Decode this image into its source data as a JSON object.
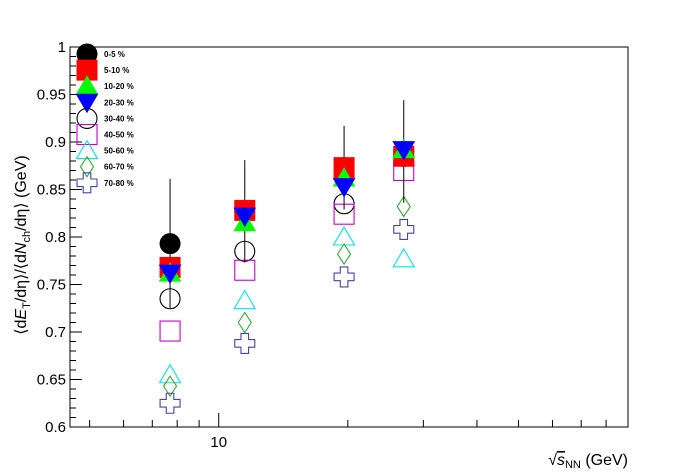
{
  "chart_data": {
    "type": "scatter",
    "title": "",
    "xlabel": {
      "prefix": "√",
      "symbol": "s",
      "subscript": "NN",
      "suffix": " (GeV)"
    },
    "ylabel": {
      "parts": [
        "⟨d",
        "E",
        "T",
        "/dη⟩/⟨d",
        "N",
        "ch",
        "/dη⟩ (GeV)"
      ]
    },
    "xscale": "log",
    "xlim": [
      4.5,
      90
    ],
    "ylim": [
      0.6,
      1.0
    ],
    "y_ticks": [
      "0.6",
      "0.65",
      "0.7",
      "0.75",
      "0.8",
      "0.85",
      "0.9",
      "0.95",
      "1"
    ],
    "x_tick_labels": [
      {
        "value": 10,
        "label": "10"
      }
    ],
    "grid": false,
    "legend_position": "top-left",
    "series": [
      {
        "name": "0-5 %",
        "marker": "circle",
        "filled": true,
        "color": "#000000",
        "points": [
          [
            7.7,
            0.793,
            0.068
          ],
          [
            11.5,
            0.827,
            0.054
          ],
          [
            19.6,
            0.873,
            0.044
          ],
          [
            27,
            0.89,
            0.054
          ]
        ]
      },
      {
        "name": "5-10 %",
        "marker": "square",
        "filled": true,
        "color": "#ff0000",
        "points": [
          [
            7.7,
            0.768
          ],
          [
            11.5,
            0.828
          ],
          [
            19.6,
            0.873
          ],
          [
            27,
            0.885
          ]
        ]
      },
      {
        "name": "10-20 %",
        "marker": "triangle-up",
        "filled": true,
        "color": "#00ff00",
        "points": [
          [
            7.7,
            0.762
          ],
          [
            11.5,
            0.815
          ],
          [
            19.6,
            0.862
          ],
          [
            27,
            0.892
          ]
        ]
      },
      {
        "name": "20-30 %",
        "marker": "triangle-down",
        "filled": true,
        "color": "#0000ff",
        "points": [
          [
            7.7,
            0.762
          ],
          [
            11.5,
            0.822
          ],
          [
            19.6,
            0.853
          ],
          [
            27,
            0.892
          ]
        ]
      },
      {
        "name": "30-40 %",
        "marker": "circle",
        "filled": false,
        "color": "#000000",
        "points": [
          [
            7.7,
            0.735
          ],
          [
            11.5,
            0.785
          ],
          [
            19.6,
            0.835
          ],
          [
            27,
            0.885
          ]
        ]
      },
      {
        "name": "40-50 %",
        "marker": "square",
        "filled": false,
        "color": "#cc00cc",
        "points": [
          [
            7.7,
            0.701
          ],
          [
            11.5,
            0.765
          ],
          [
            19.6,
            0.824
          ],
          [
            27,
            0.87
          ]
        ]
      },
      {
        "name": "50-60 %",
        "marker": "triangle-up",
        "filled": false,
        "color": "#00e5e5",
        "points": [
          [
            7.7,
            0.655
          ],
          [
            11.5,
            0.733
          ],
          [
            19.6,
            0.8
          ],
          [
            27,
            0.777
          ]
        ]
      },
      {
        "name": "60-70 %",
        "marker": "diamond",
        "filled": false,
        "color": "#33aa33",
        "points": [
          [
            7.7,
            0.643
          ],
          [
            11.5,
            0.71
          ],
          [
            19.6,
            0.782
          ],
          [
            27,
            0.832
          ]
        ]
      },
      {
        "name": "70-80 %",
        "marker": "cross",
        "filled": false,
        "color": "#4444aa",
        "points": [
          [
            7.7,
            0.625
          ],
          [
            11.5,
            0.688
          ],
          [
            19.6,
            0.758
          ],
          [
            27,
            0.808
          ]
        ]
      }
    ]
  }
}
